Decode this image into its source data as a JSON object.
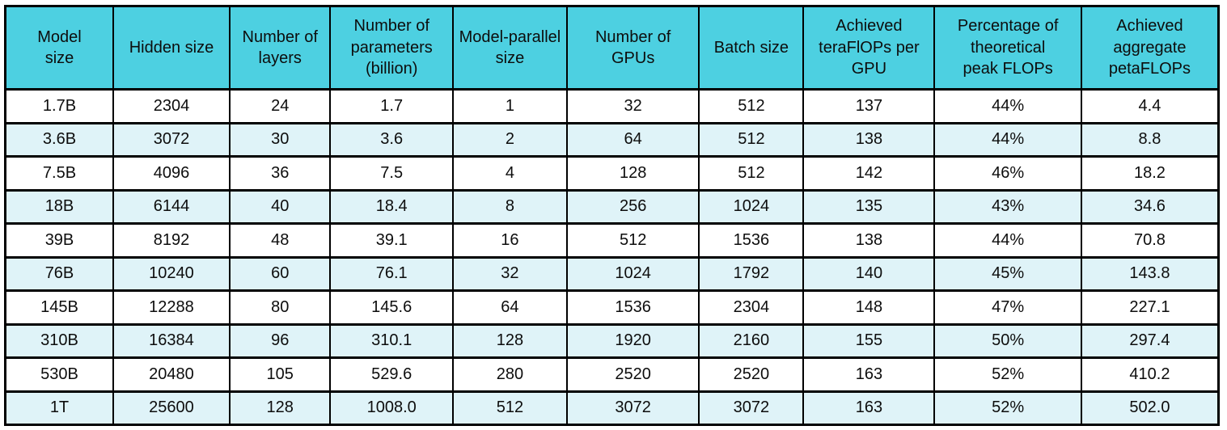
{
  "colors": {
    "header_bg": "#4dd0e1",
    "row_even_bg": "#dff3f8",
    "row_odd_bg": "#ffffff",
    "grid_border": "#000000",
    "text": "#0d0d0d",
    "page_bg": "#ffffff"
  },
  "chart_data": {
    "type": "table",
    "columns": [
      "Model\nsize",
      "Hidden size",
      "Number of\nlayers",
      "Number of\nparameters\n(billion)",
      "Model-parallel\nsize",
      "Number of\nGPUs",
      "Batch size",
      "Achieved\nteraFlOPs per\nGPU",
      "Percentage of\ntheoretical\npeak FLOPs",
      "Achieved\naggregate\npetaFLOPs"
    ],
    "column_names_plain": [
      "Model size",
      "Hidden size",
      "Number of layers",
      "Number of parameters (billion)",
      "Model-parallel size",
      "Number of GPUs",
      "Batch size",
      "Achieved teraFlOPs per GPU",
      "Percentage of theoretical peak FLOPs",
      "Achieved aggregate petaFLOPs"
    ],
    "rows": [
      [
        "1.7B",
        "2304",
        "24",
        "1.7",
        "1",
        "32",
        "512",
        "137",
        "44%",
        "4.4"
      ],
      [
        "3.6B",
        "3072",
        "30",
        "3.6",
        "2",
        "64",
        "512",
        "138",
        "44%",
        "8.8"
      ],
      [
        "7.5B",
        "4096",
        "36",
        "7.5",
        "4",
        "128",
        "512",
        "142",
        "46%",
        "18.2"
      ],
      [
        "18B",
        "6144",
        "40",
        "18.4",
        "8",
        "256",
        "1024",
        "135",
        "43%",
        "34.6"
      ],
      [
        "39B",
        "8192",
        "48",
        "39.1",
        "16",
        "512",
        "1536",
        "138",
        "44%",
        "70.8"
      ],
      [
        "76B",
        "10240",
        "60",
        "76.1",
        "32",
        "1024",
        "1792",
        "140",
        "45%",
        "143.8"
      ],
      [
        "145B",
        "12288",
        "80",
        "145.6",
        "64",
        "1536",
        "2304",
        "148",
        "47%",
        "227.1"
      ],
      [
        "310B",
        "16384",
        "96",
        "310.1",
        "128",
        "1920",
        "2160",
        "155",
        "50%",
        "297.4"
      ],
      [
        "530B",
        "20480",
        "105",
        "529.6",
        "280",
        "2520",
        "2520",
        "163",
        "52%",
        "410.2"
      ],
      [
        "1T",
        "25600",
        "128",
        "1008.0",
        "512",
        "3072",
        "3072",
        "163",
        "52%",
        "502.0"
      ]
    ]
  }
}
